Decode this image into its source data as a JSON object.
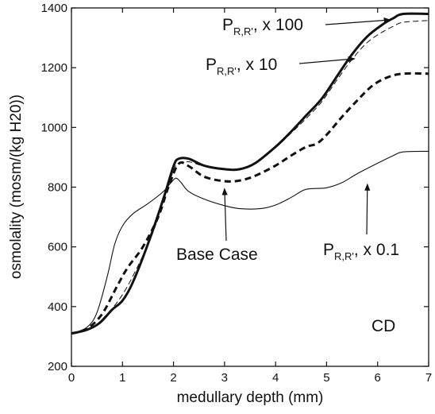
{
  "chart_data": {
    "type": "line",
    "xlabel": "medullary depth (mm)",
    "ylabel": "osmolality (mosm/(kg H20))",
    "xlim": [
      0,
      7
    ],
    "ylim": [
      200,
      1400
    ],
    "xticks": [
      0,
      1,
      2,
      3,
      4,
      5,
      6,
      7
    ],
    "yticks": [
      200,
      400,
      600,
      800,
      1000,
      1200,
      1400
    ],
    "grid": false,
    "legend": "none",
    "series": [
      {
        "name": "P_R,R' x 100",
        "style": "thick-solid",
        "points": [
          [
            0,
            310
          ],
          [
            0.3,
            322
          ],
          [
            0.55,
            345
          ],
          [
            0.8,
            390
          ],
          [
            1.0,
            420
          ],
          [
            1.2,
            480
          ],
          [
            1.5,
            610
          ],
          [
            1.8,
            760
          ],
          [
            2.0,
            870
          ],
          [
            2.1,
            895
          ],
          [
            2.3,
            895
          ],
          [
            2.6,
            872
          ],
          [
            3.0,
            860
          ],
          [
            3.3,
            860
          ],
          [
            3.6,
            880
          ],
          [
            4.0,
            935
          ],
          [
            4.3,
            985
          ],
          [
            4.6,
            1040
          ],
          [
            4.9,
            1095
          ],
          [
            5.2,
            1170
          ],
          [
            5.5,
            1245
          ],
          [
            5.8,
            1305
          ],
          [
            6.1,
            1345
          ],
          [
            6.3,
            1365
          ],
          [
            6.5,
            1380
          ],
          [
            7.0,
            1380
          ]
        ]
      },
      {
        "name": "P_R,R' x 10",
        "style": "thin-dashed",
        "points": [
          [
            0,
            310
          ],
          [
            0.4,
            330
          ],
          [
            0.7,
            375
          ],
          [
            1.0,
            440
          ],
          [
            1.3,
            535
          ],
          [
            1.6,
            650
          ],
          [
            1.85,
            780
          ],
          [
            2.0,
            855
          ],
          [
            2.1,
            880
          ],
          [
            2.3,
            885
          ],
          [
            2.6,
            870
          ],
          [
            3.0,
            858
          ],
          [
            3.3,
            858
          ],
          [
            3.6,
            878
          ],
          [
            4.0,
            932
          ],
          [
            4.3,
            980
          ],
          [
            4.6,
            1030
          ],
          [
            4.9,
            1085
          ],
          [
            5.2,
            1158
          ],
          [
            5.5,
            1228
          ],
          [
            5.8,
            1285
          ],
          [
            6.1,
            1320
          ],
          [
            6.3,
            1338
          ],
          [
            6.5,
            1352
          ],
          [
            7.0,
            1358
          ]
        ]
      },
      {
        "name": "Base Case",
        "style": "thick-dashed",
        "points": [
          [
            0,
            310
          ],
          [
            0.3,
            325
          ],
          [
            0.6,
            375
          ],
          [
            0.9,
            470
          ],
          [
            1.1,
            530
          ],
          [
            1.4,
            600
          ],
          [
            1.7,
            700
          ],
          [
            1.9,
            800
          ],
          [
            2.1,
            878
          ],
          [
            2.3,
            870
          ],
          [
            2.6,
            835
          ],
          [
            3.0,
            820
          ],
          [
            3.3,
            822
          ],
          [
            3.6,
            838
          ],
          [
            4.0,
            872
          ],
          [
            4.3,
            905
          ],
          [
            4.6,
            935
          ],
          [
            4.8,
            945
          ],
          [
            5.0,
            975
          ],
          [
            5.3,
            1035
          ],
          [
            5.6,
            1090
          ],
          [
            5.9,
            1140
          ],
          [
            6.2,
            1168
          ],
          [
            6.5,
            1180
          ],
          [
            7.0,
            1180
          ]
        ]
      },
      {
        "name": "P_R,R' x 0.1",
        "style": "thin-solid",
        "points": [
          [
            0,
            310
          ],
          [
            0.3,
            330
          ],
          [
            0.5,
            380
          ],
          [
            0.7,
            500
          ],
          [
            0.85,
            610
          ],
          [
            1.0,
            670
          ],
          [
            1.2,
            710
          ],
          [
            1.5,
            745
          ],
          [
            1.8,
            785
          ],
          [
            1.95,
            815
          ],
          [
            2.05,
            830
          ],
          [
            2.15,
            815
          ],
          [
            2.3,
            785
          ],
          [
            2.6,
            760
          ],
          [
            3.0,
            738
          ],
          [
            3.3,
            728
          ],
          [
            3.7,
            728
          ],
          [
            4.0,
            740
          ],
          [
            4.3,
            765
          ],
          [
            4.55,
            790
          ],
          [
            4.7,
            795
          ],
          [
            5.0,
            798
          ],
          [
            5.3,
            815
          ],
          [
            5.6,
            845
          ],
          [
            6.0,
            880
          ],
          [
            6.3,
            905
          ],
          [
            6.5,
            918
          ],
          [
            7.0,
            920
          ]
        ]
      }
    ],
    "annotations": [
      {
        "text": "P",
        "sub": "R,R'",
        "suffix": ", x 100",
        "target": [
          6.3,
          1365
        ]
      },
      {
        "text": "P",
        "sub": "R,R'",
        "suffix": ", x 10",
        "target": [
          5.55,
          1230
        ]
      },
      {
        "text": "Base Case",
        "target": [
          3.0,
          820
        ]
      },
      {
        "text": "P",
        "sub": "R,R'",
        "suffix": ", x 0.1",
        "target": [
          5.8,
          845
        ]
      },
      {
        "text": "CD"
      }
    ]
  }
}
